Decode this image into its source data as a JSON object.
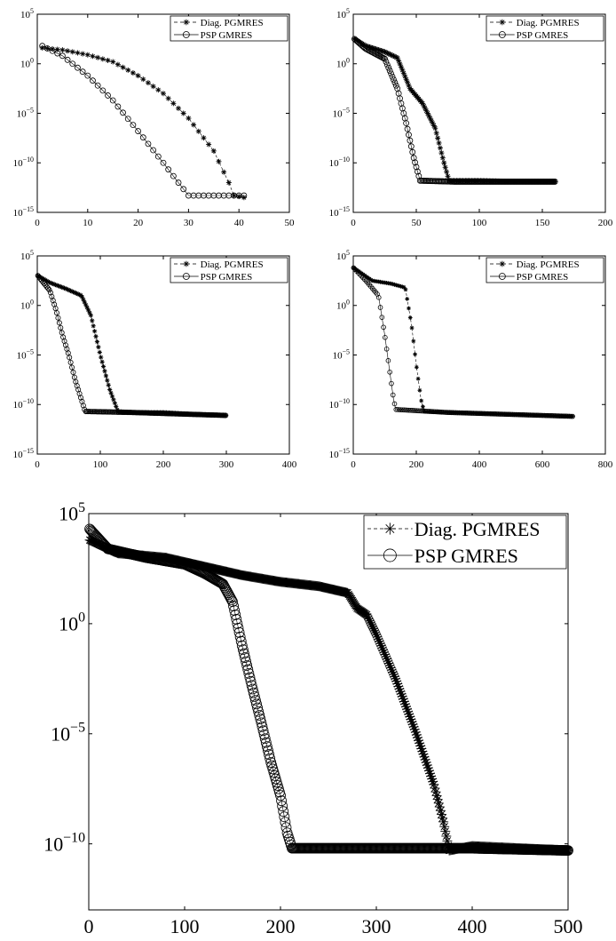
{
  "chart_data": [
    {
      "type": "line",
      "y_scale": "log",
      "xlim": [
        0,
        50
      ],
      "ylim_exp": [
        -15,
        5
      ],
      "x_ticks": [
        0,
        10,
        20,
        30,
        40,
        50
      ],
      "y_ticks_exp": [
        5,
        0,
        -5,
        -10,
        -15
      ],
      "legend_position": "top-right",
      "series": [
        {
          "name": "Diag. PGMRES",
          "marker": "star",
          "points": [
            [
              1,
              1.6
            ],
            [
              5,
              1.4
            ],
            [
              10,
              0.9
            ],
            [
              15,
              0.2
            ],
            [
              20,
              -1.2
            ],
            [
              25,
              -3
            ],
            [
              30,
              -5.5
            ],
            [
              35,
              -8.8
            ],
            [
              38,
              -12
            ],
            [
              39,
              -13.3
            ],
            [
              41,
              -13.5
            ]
          ]
        },
        {
          "name": "PSP GMRES",
          "marker": "circle",
          "points": [
            [
              1,
              1.8
            ],
            [
              5,
              0.8
            ],
            [
              10,
              -1.2
            ],
            [
              15,
              -3.7
            ],
            [
              20,
              -6.8
            ],
            [
              25,
              -10
            ],
            [
              28,
              -12
            ],
            [
              30,
              -13.3
            ],
            [
              35,
              -13.3
            ],
            [
              41,
              -13.3
            ]
          ]
        }
      ]
    },
    {
      "type": "line",
      "y_scale": "log",
      "xlim": [
        0,
        200
      ],
      "ylim_exp": [
        -15,
        5
      ],
      "x_ticks": [
        0,
        50,
        100,
        150,
        200
      ],
      "y_ticks_exp": [
        5,
        0,
        -5,
        -10,
        -15
      ],
      "legend_position": "top-right",
      "series": [
        {
          "name": "Diag. PGMRES",
          "marker": "star",
          "points": [
            [
              1,
              2.5
            ],
            [
              10,
              1.8
            ],
            [
              25,
              1.2
            ],
            [
              35,
              0.6
            ],
            [
              45,
              -2.5
            ],
            [
              55,
              -4
            ],
            [
              65,
              -6.5
            ],
            [
              72,
              -10
            ],
            [
              76,
              -11.8
            ],
            [
              100,
              -11.8
            ],
            [
              130,
              -11.9
            ],
            [
              160,
              -11.9
            ]
          ]
        },
        {
          "name": "PSP GMRES",
          "marker": "circle",
          "points": [
            [
              1,
              2.5
            ],
            [
              10,
              1.5
            ],
            [
              25,
              0.5
            ],
            [
              35,
              -2.5
            ],
            [
              42,
              -6
            ],
            [
              48,
              -9.5
            ],
            [
              53,
              -11.8
            ],
            [
              80,
              -11.9
            ],
            [
              120,
              -11.9
            ],
            [
              160,
              -11.9
            ]
          ]
        }
      ]
    },
    {
      "type": "line",
      "y_scale": "log",
      "xlim": [
        0,
        400
      ],
      "ylim_exp": [
        -15,
        5
      ],
      "x_ticks": [
        0,
        100,
        200,
        300,
        400
      ],
      "y_ticks_exp": [
        5,
        0,
        -5,
        -10,
        -15
      ],
      "legend_position": "top-right",
      "series": [
        {
          "name": "Diag. PGMRES",
          "marker": "star",
          "points": [
            [
              1,
              3
            ],
            [
              20,
              2.3
            ],
            [
              45,
              1.7
            ],
            [
              70,
              1
            ],
            [
              85,
              -1
            ],
            [
              100,
              -5
            ],
            [
              115,
              -8.5
            ],
            [
              128,
              -10.7
            ],
            [
              150,
              -10.8
            ],
            [
              200,
              -10.8
            ],
            [
              250,
              -11
            ],
            [
              300,
              -11.1
            ]
          ]
        },
        {
          "name": "PSP GMRES",
          "marker": "circle",
          "points": [
            [
              1,
              3
            ],
            [
              20,
              1.5
            ],
            [
              30,
              -0.5
            ],
            [
              40,
              -3
            ],
            [
              50,
              -5
            ],
            [
              60,
              -7.5
            ],
            [
              70,
              -9.5
            ],
            [
              76,
              -10.7
            ],
            [
              150,
              -10.8
            ],
            [
              250,
              -11
            ],
            [
              300,
              -11.1
            ]
          ]
        }
      ]
    },
    {
      "type": "line",
      "y_scale": "log",
      "xlim": [
        0,
        800
      ],
      "ylim_exp": [
        -15,
        5
      ],
      "x_ticks": [
        0,
        200,
        400,
        600,
        800
      ],
      "y_ticks_exp": [
        5,
        0,
        -5,
        -10,
        -15
      ],
      "legend_position": "top-right",
      "series": [
        {
          "name": "Diag. PGMRES",
          "marker": "star",
          "points": [
            [
              1,
              3.8
            ],
            [
              60,
              2.5
            ],
            [
              120,
              2.2
            ],
            [
              165,
              1.8
            ],
            [
              185,
              -2
            ],
            [
              200,
              -6
            ],
            [
              215,
              -9.5
            ],
            [
              225,
              -10.7
            ],
            [
              300,
              -10.8
            ],
            [
              500,
              -11
            ],
            [
              700,
              -11.2
            ]
          ]
        },
        {
          "name": "PSP GMRES",
          "marker": "circle",
          "points": [
            [
              1,
              3.8
            ],
            [
              40,
              2.5
            ],
            [
              80,
              1
            ],
            [
              100,
              -3
            ],
            [
              115,
              -6.5
            ],
            [
              128,
              -9.5
            ],
            [
              135,
              -10.5
            ],
            [
              300,
              -10.8
            ],
            [
              500,
              -11
            ],
            [
              700,
              -11.2
            ]
          ]
        }
      ]
    },
    {
      "type": "line",
      "y_scale": "log",
      "xlim": [
        0,
        500
      ],
      "ylim_exp": [
        -13,
        5
      ],
      "x_ticks": [
        0,
        100,
        200,
        300,
        400,
        500
      ],
      "y_ticks_exp": [
        5,
        0,
        -5,
        -10
      ],
      "legend_position": "top-right",
      "series": [
        {
          "name": "Diag. PGMRES",
          "marker": "star",
          "points": [
            [
              1,
              3.8
            ],
            [
              30,
              3.2
            ],
            [
              80,
              3
            ],
            [
              120,
              2.6
            ],
            [
              160,
              2.2
            ],
            [
              200,
              1.9
            ],
            [
              240,
              1.7
            ],
            [
              270,
              1.4
            ],
            [
              280,
              0.7
            ],
            [
              290,
              0.4
            ],
            [
              300,
              -0.5
            ],
            [
              320,
              -2.5
            ],
            [
              340,
              -4.8
            ],
            [
              360,
              -7.3
            ],
            [
              370,
              -9
            ],
            [
              376,
              -10.3
            ],
            [
              400,
              -10.1
            ],
            [
              450,
              -10.2
            ],
            [
              500,
              -10.3
            ]
          ]
        },
        {
          "name": "PSP GMRES",
          "marker": "circle",
          "points": [
            [
              1,
              4.3
            ],
            [
              20,
              3.4
            ],
            [
              60,
              3
            ],
            [
              100,
              2.7
            ],
            [
              120,
              2.3
            ],
            [
              140,
              1.8
            ],
            [
              150,
              1
            ],
            [
              160,
              -1
            ],
            [
              170,
              -2.8
            ],
            [
              180,
              -4.5
            ],
            [
              190,
              -6.3
            ],
            [
              200,
              -7.8
            ],
            [
              207,
              -9.5
            ],
            [
              212,
              -10.2
            ],
            [
              250,
              -10.2
            ],
            [
              300,
              -10.2
            ],
            [
              400,
              -10.2
            ],
            [
              500,
              -10.3
            ]
          ]
        }
      ]
    }
  ]
}
